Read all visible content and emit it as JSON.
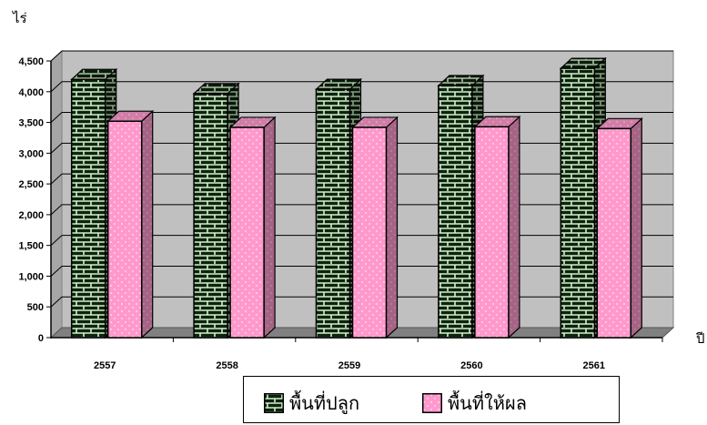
{
  "chart_data": {
    "type": "bar",
    "ylabel": "ไร่",
    "xlabel": "ปี",
    "categories": [
      "2557",
      "2558",
      "2559",
      "2560",
      "2561"
    ],
    "series": [
      {
        "name": "พื้นที่ปลูก",
        "values": [
          4200,
          3970,
          4040,
          4100,
          4380
        ],
        "color": "#0a2410",
        "pattern": "brick"
      },
      {
        "name": "พื้นที่ให้ผล",
        "values": [
          3520,
          3420,
          3420,
          3430,
          3400
        ],
        "color": "#ff99cc",
        "pattern": "dots"
      }
    ],
    "ylim": [
      0,
      4500
    ],
    "yticks": [
      "0",
      "500",
      "1,000",
      "1,500",
      "2,000",
      "2,500",
      "3,000",
      "3,500",
      "4,000",
      "4,500"
    ],
    "grid": true,
    "three_d": true,
    "wall_color": "#c0c0c0",
    "legend_position": "bottom"
  }
}
